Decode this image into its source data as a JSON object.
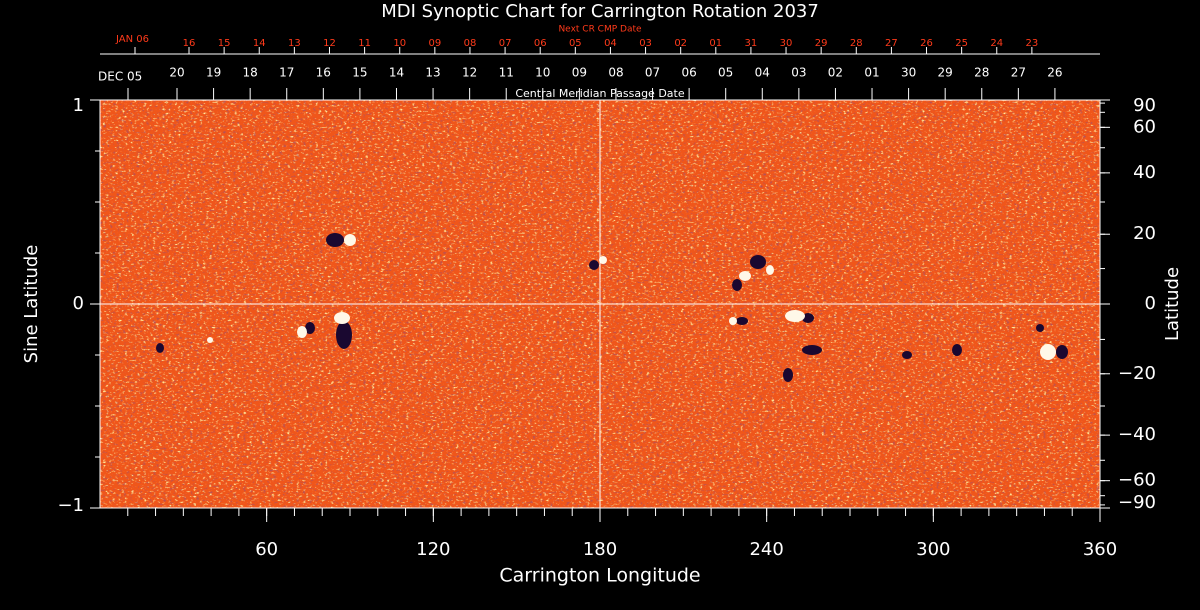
{
  "chart_data": {
    "type": "image",
    "title": "MDI Synoptic Chart for Carrington Rotation 2037",
    "x_label": "Carrington Longitude",
    "y_label": "Sine Latitude",
    "y2_label": "Latitude",
    "xlim": [
      0,
      360
    ],
    "xticks": [
      60,
      120,
      180,
      240,
      300,
      360
    ],
    "ylim": [
      -1,
      1
    ],
    "yticks": [
      {
        "value": -1,
        "label": "−1"
      },
      0,
      1
    ],
    "y2lim": [
      -90,
      90
    ],
    "y2scale": "sine",
    "y2ticks": [
      {
        "value": -90,
        "label": "−90"
      },
      {
        "value": -60,
        "label": "−60"
      },
      {
        "value": -40,
        "label": "−40"
      },
      {
        "value": -20,
        "label": "−20"
      },
      0,
      20,
      40,
      60,
      90
    ],
    "cmp_axis": {
      "label": "Central Meridian Passage Date",
      "start_label": "DEC 05",
      "dates": [
        "20",
        "19",
        "18",
        "17",
        "16",
        "15",
        "14",
        "13",
        "12",
        "11",
        "10",
        "09",
        "08",
        "07",
        "06",
        "05",
        "04",
        "03",
        "02",
        "01",
        "30",
        "29",
        "28",
        "27",
        "26"
      ]
    },
    "next_cr_axis": {
      "label": "Next CR CMP Date",
      "start_label": "JAN 06",
      "color": "#ff3a1a",
      "dates": [
        "16",
        "15",
        "14",
        "13",
        "12",
        "11",
        "10",
        "09",
        "08",
        "07",
        "06",
        "05",
        "04",
        "03",
        "02",
        "01",
        "31",
        "30",
        "29",
        "28",
        "27",
        "26",
        "25",
        "24",
        "23"
      ]
    }
  }
}
